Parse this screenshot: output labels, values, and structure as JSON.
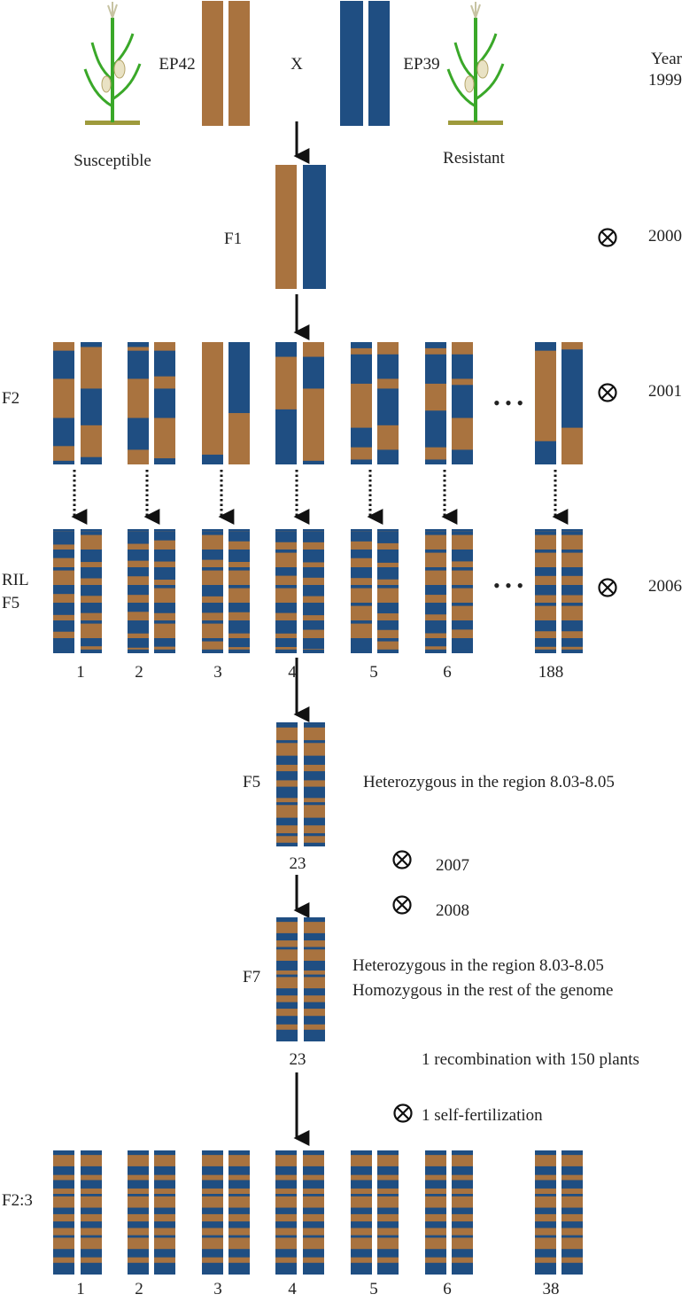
{
  "colors": {
    "susceptible": "#a9733f",
    "resistant": "#1f4e82",
    "line": "#111111",
    "text": "#222222",
    "plant_leaf": "#3aa829",
    "plant_soil": "#9e9a3c"
  },
  "icons": {
    "self_cross": "circled-x-icon",
    "plant": "maize-plant-icon",
    "arrow": "arrow-down-icon"
  },
  "labels": {
    "ep42": "EP42",
    "ep39": "EP39",
    "cross": "X",
    "susceptible": "Susceptible",
    "resistant": "Resistant",
    "year_title": "Year",
    "f1": "F1",
    "f2": "F2",
    "ril": "RIL",
    "f5_ril": "F5",
    "f5": "F5",
    "f7": "F7",
    "f23": "F2:3",
    "ellipsis": "• • •"
  },
  "years": {
    "y1999": "1999",
    "y2000": "2000",
    "y2001": "2001",
    "y2006": "2006",
    "y2007": "2007",
    "y2008": "2008"
  },
  "notes": {
    "f5_note": "Heterozygous in the region 8.03-8.05",
    "f7_note_1": "Heterozygous in the region 8.03-8.05",
    "f7_note_2": "Homozygous  in the rest of the genome",
    "f7_number": "23",
    "f5_number": "23",
    "recombination": "1 recombination with 150 plants",
    "self_fert": "1 self-fertilization"
  },
  "ril_numbers": [
    "1",
    "2",
    "3",
    "4",
    "5",
    "6",
    "188"
  ],
  "f23_numbers": [
    "1",
    "2",
    "3",
    "4",
    "5",
    "6",
    "38"
  ]
}
